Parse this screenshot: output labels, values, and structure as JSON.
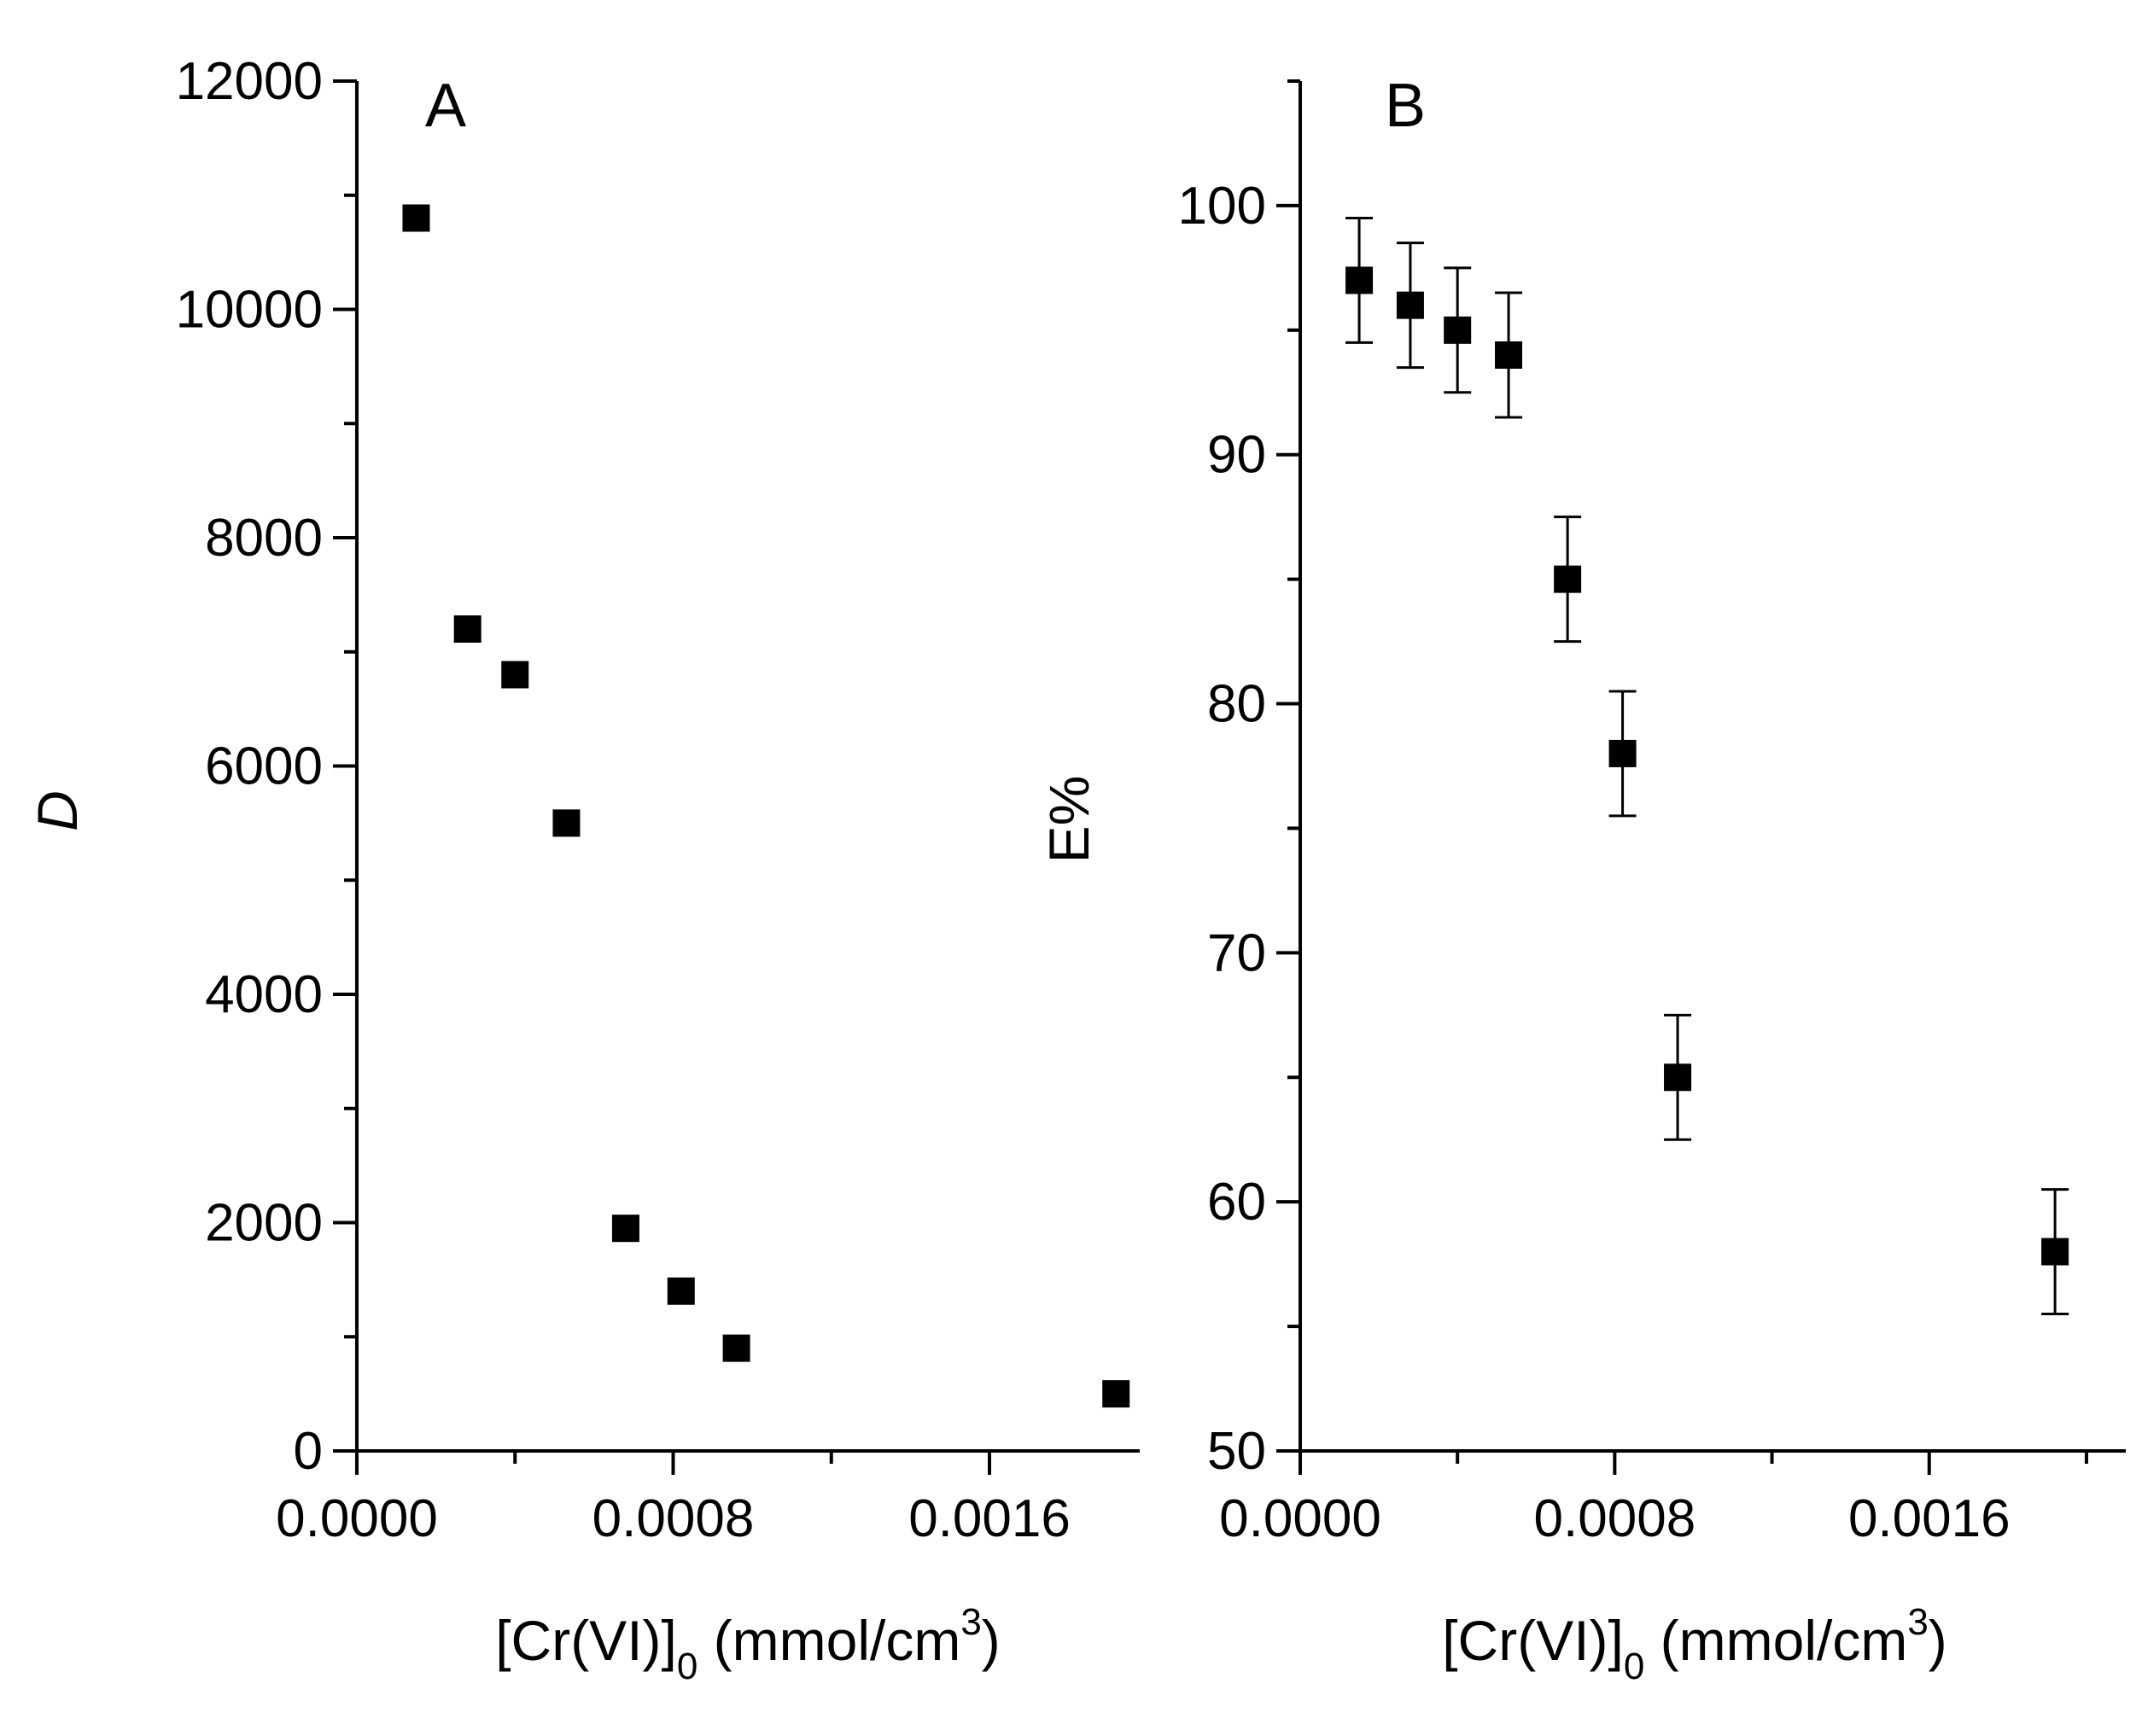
{
  "chart_data": [
    {
      "type": "scatter",
      "panel_label": "A",
      "xlabel": {
        "main": "[Cr(VI)]",
        "sub": "0",
        "unit_pre": " (mmol/cm",
        "sup": "3",
        "unit_post": ")"
      },
      "ylabel": "D",
      "xlim": [
        0,
        0.00198
      ],
      "ylim": [
        0,
        12000
      ],
      "x_ticks": [
        0.0,
        0.0008,
        0.0016
      ],
      "x_tick_labels": [
        "0.0000",
        "0.0008",
        "0.0016"
      ],
      "x_minor_ticks": [
        0.0004,
        0.0012
      ],
      "y_ticks": [
        0,
        2000,
        4000,
        6000,
        8000,
        10000,
        12000
      ],
      "y_tick_labels": [
        "0",
        "2000",
        "4000",
        "6000",
        "8000",
        "10000",
        "12000"
      ],
      "y_minor_ticks": [
        1000,
        3000,
        5000,
        7000,
        9000,
        11000
      ],
      "series": [
        {
          "name": "D",
          "x": [
            0.00015,
            0.00028,
            0.0004,
            0.00053,
            0.00068,
            0.00082,
            0.00096,
            0.00192
          ],
          "y": [
            10800,
            7200,
            6800,
            5500,
            1950,
            1400,
            900,
            500
          ]
        }
      ]
    },
    {
      "type": "scatter",
      "panel_label": "B",
      "xlabel": {
        "main": "[Cr(VI)]",
        "sub": "0",
        "unit_pre": " (mmol/cm",
        "sup": "3",
        "unit_post": ")"
      },
      "ylabel": "E%",
      "xlim": [
        0,
        0.0021
      ],
      "ylim": [
        50,
        105
      ],
      "x_ticks": [
        0.0,
        0.0008,
        0.0016
      ],
      "x_tick_labels": [
        "0.0000",
        "0.0008",
        "0.0016"
      ],
      "x_minor_ticks": [
        0.0004,
        0.0012,
        0.002
      ],
      "y_ticks": [
        50,
        60,
        70,
        80,
        90,
        100
      ],
      "y_tick_labels": [
        "50",
        "60",
        "70",
        "80",
        "90",
        "100"
      ],
      "y_minor_ticks": [
        55,
        65,
        75,
        85,
        95,
        105
      ],
      "series": [
        {
          "name": "E%",
          "x": [
            0.00015,
            0.00028,
            0.0004,
            0.00053,
            0.00068,
            0.00082,
            0.00096,
            0.00192
          ],
          "y": [
            97,
            96,
            95,
            94,
            85,
            78,
            65,
            58
          ],
          "error": [
            2.5,
            2.5,
            2.5,
            2.5,
            2.5,
            2.5,
            2.5,
            2.5
          ]
        }
      ]
    }
  ]
}
